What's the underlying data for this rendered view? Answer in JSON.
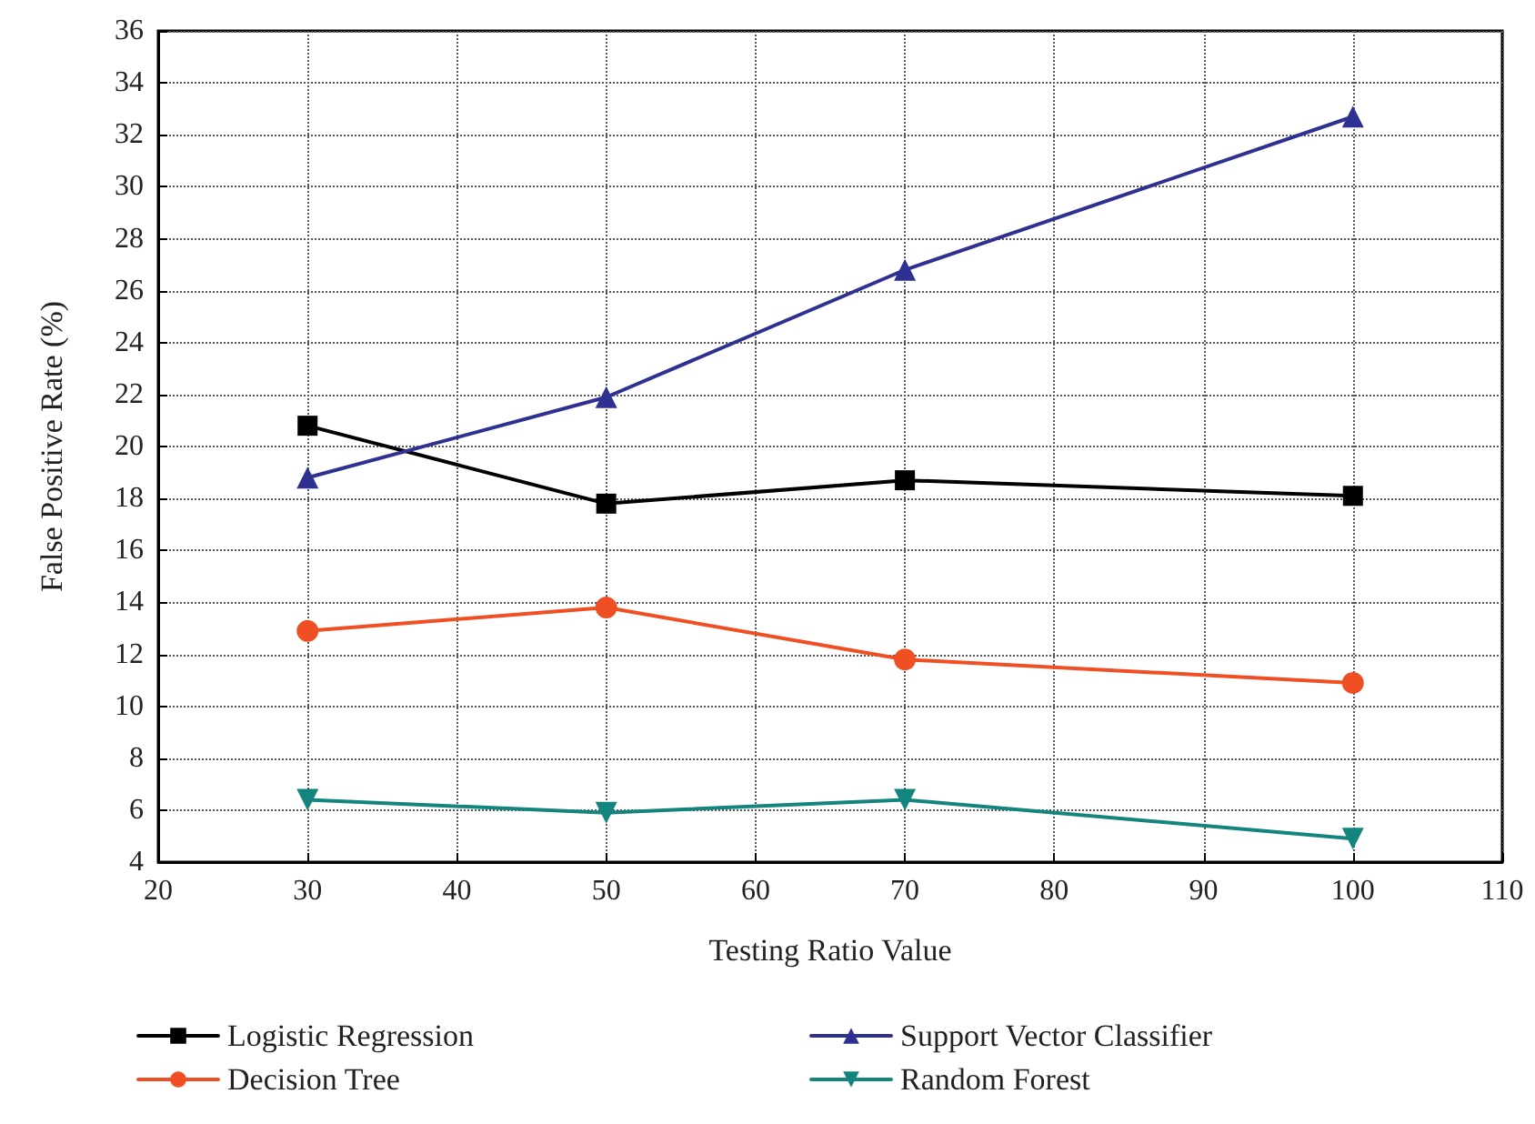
{
  "chart_data": {
    "type": "line",
    "xlabel": "Testing Ratio Value",
    "ylabel": "False Positive Rate (%)",
    "x": [
      30,
      50,
      70,
      100
    ],
    "series": [
      {
        "name": "Logistic Regression",
        "color": "#000000",
        "marker": "square",
        "values": [
          20.8,
          17.8,
          18.7,
          18.1
        ]
      },
      {
        "name": "Support Vector Classifier",
        "color": "#2e3192",
        "marker": "triangle",
        "values": [
          18.8,
          21.9,
          26.8,
          32.7
        ]
      },
      {
        "name": "Decision Tree",
        "color": "#f04e23",
        "marker": "circle",
        "values": [
          12.9,
          13.8,
          11.8,
          10.9
        ]
      },
      {
        "name": "Random Forest",
        "color": "#13857e",
        "marker": "triangle-down",
        "values": [
          6.4,
          5.9,
          6.4,
          4.9
        ]
      }
    ],
    "xlim": [
      20,
      110
    ],
    "xticks": [
      20,
      30,
      40,
      50,
      60,
      70,
      80,
      90,
      100,
      110
    ],
    "ylim": [
      4,
      36
    ],
    "yticks": [
      4,
      6,
      8,
      10,
      12,
      14,
      16,
      18,
      20,
      22,
      24,
      26,
      28,
      30,
      32,
      34,
      36
    ],
    "grid": true,
    "legend": "bottom",
    "line_style": "solid"
  }
}
